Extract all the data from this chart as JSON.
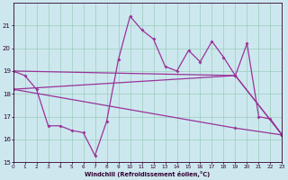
{
  "xlabel": "Windchill (Refroidissement éolien,°C)",
  "background_color": "#cce8ee",
  "grid_color": "#99ccbb",
  "line_color": "#993399",
  "x_ticks": [
    0,
    1,
    2,
    3,
    4,
    5,
    6,
    7,
    8,
    9,
    10,
    11,
    12,
    13,
    14,
    15,
    16,
    17,
    18,
    19,
    20,
    21,
    22,
    23
  ],
  "ylim": [
    15,
    22
  ],
  "y_ticks": [
    15,
    16,
    17,
    18,
    19,
    20,
    21
  ],
  "zigzag": [
    19.0,
    18.8,
    18.2,
    16.6,
    16.6,
    16.4,
    16.3,
    15.3,
    16.8,
    19.5,
    21.4,
    20.8,
    20.4,
    19.2,
    19.0,
    19.9,
    19.4,
    20.3,
    19.6,
    18.8,
    20.2,
    17.0,
    16.9,
    16.2
  ],
  "line1_x": [
    0,
    19,
    23
  ],
  "line1_y": [
    19.0,
    18.8,
    16.2
  ],
  "line2_x": [
    0,
    19,
    23
  ],
  "line2_y": [
    18.2,
    18.8,
    16.2
  ],
  "line3_x": [
    0,
    19,
    23
  ],
  "line3_y": [
    18.2,
    16.5,
    16.2
  ]
}
